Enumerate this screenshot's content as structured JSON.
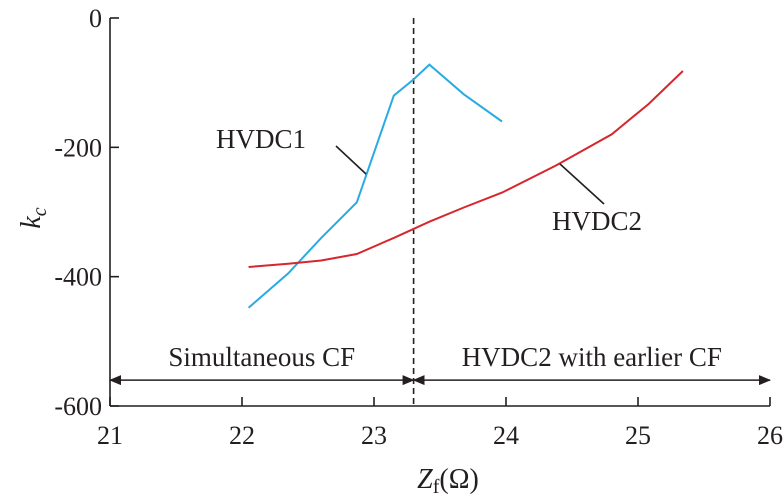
{
  "chart_data": {
    "type": "line",
    "xlabel": "Z",
    "xlabel_sub": "f",
    "xlabel_unit": "(Ω)",
    "ylabel": "k",
    "ylabel_sub": "c",
    "xlim": [
      21,
      26
    ],
    "ylim": [
      -600,
      0
    ],
    "xticks": [
      21,
      22,
      23,
      24,
      25,
      26
    ],
    "yticks": [
      0,
      -200,
      -400,
      -600
    ],
    "grid": false,
    "series": [
      {
        "name": "HVDC1",
        "color": "#29abe2",
        "x": [
          22.05,
          22.35,
          22.6,
          22.87,
          23.15,
          23.3,
          23.42,
          23.68,
          23.97
        ],
        "y": [
          -448,
          -395,
          -340,
          -285,
          -120,
          -95,
          -72,
          -118,
          -160
        ]
      },
      {
        "name": "HVDC2",
        "color": "#d7262e",
        "x": [
          22.05,
          22.35,
          22.6,
          22.87,
          23.15,
          23.42,
          23.68,
          23.97,
          24.38,
          24.8,
          25.08,
          25.34
        ],
        "y": [
          -385,
          -380,
          -375,
          -365,
          -340,
          -315,
          -293,
          -270,
          -228,
          -180,
          -133,
          -82
        ]
      }
    ],
    "annotations": {
      "divider_x": 23.3,
      "arrow_y": -560,
      "left_region": "Simultaneous CF",
      "right_region": "HVDC2 with earlier CF"
    }
  }
}
